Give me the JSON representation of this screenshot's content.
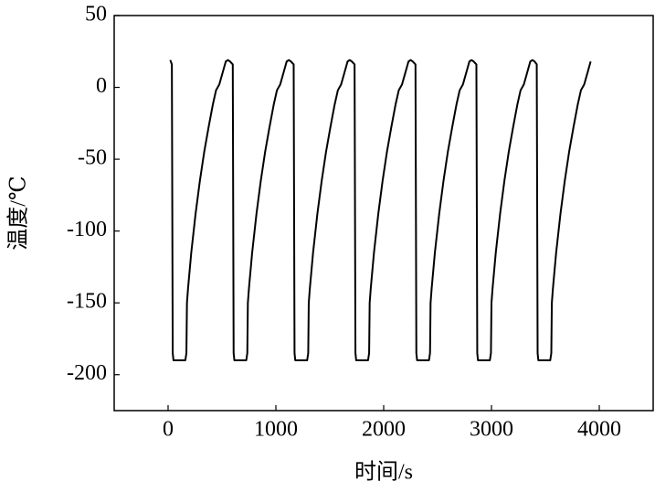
{
  "chart_data": {
    "type": "line",
    "x_label": "时间/s",
    "y_label": "温度/℃",
    "xlim": [
      -500,
      4500
    ],
    "ylim": [
      -225,
      50
    ],
    "xticks": [
      0,
      1000,
      2000,
      3000,
      4000
    ],
    "yticks": [
      -200,
      -150,
      -100,
      -50,
      0,
      50
    ],
    "x": [
      20,
      35,
      43,
      50,
      160,
      170,
      175,
      185,
      215,
      255,
      295,
      335,
      375,
      415,
      445,
      475,
      505,
      535,
      555,
      575,
      600,
      608,
      615,
      725,
      735,
      740,
      750,
      780,
      820,
      860,
      900,
      940,
      980,
      1010,
      1040,
      1070,
      1100,
      1120,
      1140,
      1165,
      1173,
      1180,
      1290,
      1300,
      1305,
      1315,
      1345,
      1385,
      1425,
      1465,
      1505,
      1545,
      1575,
      1605,
      1635,
      1665,
      1685,
      1705,
      1730,
      1738,
      1745,
      1855,
      1865,
      1870,
      1880,
      1910,
      1950,
      1990,
      2030,
      2070,
      2110,
      2140,
      2170,
      2200,
      2230,
      2250,
      2270,
      2295,
      2303,
      2310,
      2420,
      2430,
      2435,
      2445,
      2475,
      2515,
      2555,
      2595,
      2635,
      2675,
      2705,
      2735,
      2765,
      2795,
      2815,
      2835,
      2860,
      2868,
      2875,
      2985,
      2995,
      3000,
      3010,
      3040,
      3080,
      3120,
      3160,
      3200,
      3240,
      3270,
      3300,
      3330,
      3360,
      3380,
      3400,
      3420,
      3428,
      3435,
      3545,
      3555,
      3560,
      3570,
      3600,
      3640,
      3680,
      3720,
      3760,
      3800,
      3830,
      3860,
      3890,
      3920
    ],
    "series": [
      {
        "color": "#000000",
        "values": [
          19,
          16,
          -185,
          -190,
          -190,
          -185,
          -150,
          -140,
          -115,
          -88,
          -65,
          -45,
          -28,
          -12,
          -2,
          2,
          10,
          18,
          19,
          18,
          16,
          -185,
          -190,
          -190,
          -185,
          -150,
          -140,
          -115,
          -88,
          -65,
          -45,
          -28,
          -12,
          -2,
          2,
          10,
          18,
          19,
          18,
          16,
          -185,
          -190,
          -190,
          -185,
          -150,
          -140,
          -115,
          -88,
          -65,
          -45,
          -28,
          -12,
          -2,
          2,
          10,
          18,
          19,
          18,
          16,
          -185,
          -190,
          -190,
          -185,
          -150,
          -140,
          -115,
          -88,
          -65,
          -45,
          -28,
          -12,
          -2,
          2,
          10,
          18,
          19,
          18,
          16,
          -185,
          -190,
          -190,
          -185,
          -150,
          -140,
          -115,
          -88,
          -65,
          -45,
          -28,
          -12,
          -2,
          2,
          10,
          18,
          19,
          18,
          16,
          -185,
          -190,
          -190,
          -185,
          -150,
          -140,
          -115,
          -88,
          -65,
          -45,
          -28,
          -12,
          -2,
          2,
          10,
          18,
          19,
          18,
          16,
          -185,
          -190,
          -190,
          -185,
          -150,
          -140,
          -115,
          -88,
          -65,
          -45,
          -28,
          -12,
          -2,
          2,
          10,
          18
        ]
      }
    ]
  }
}
